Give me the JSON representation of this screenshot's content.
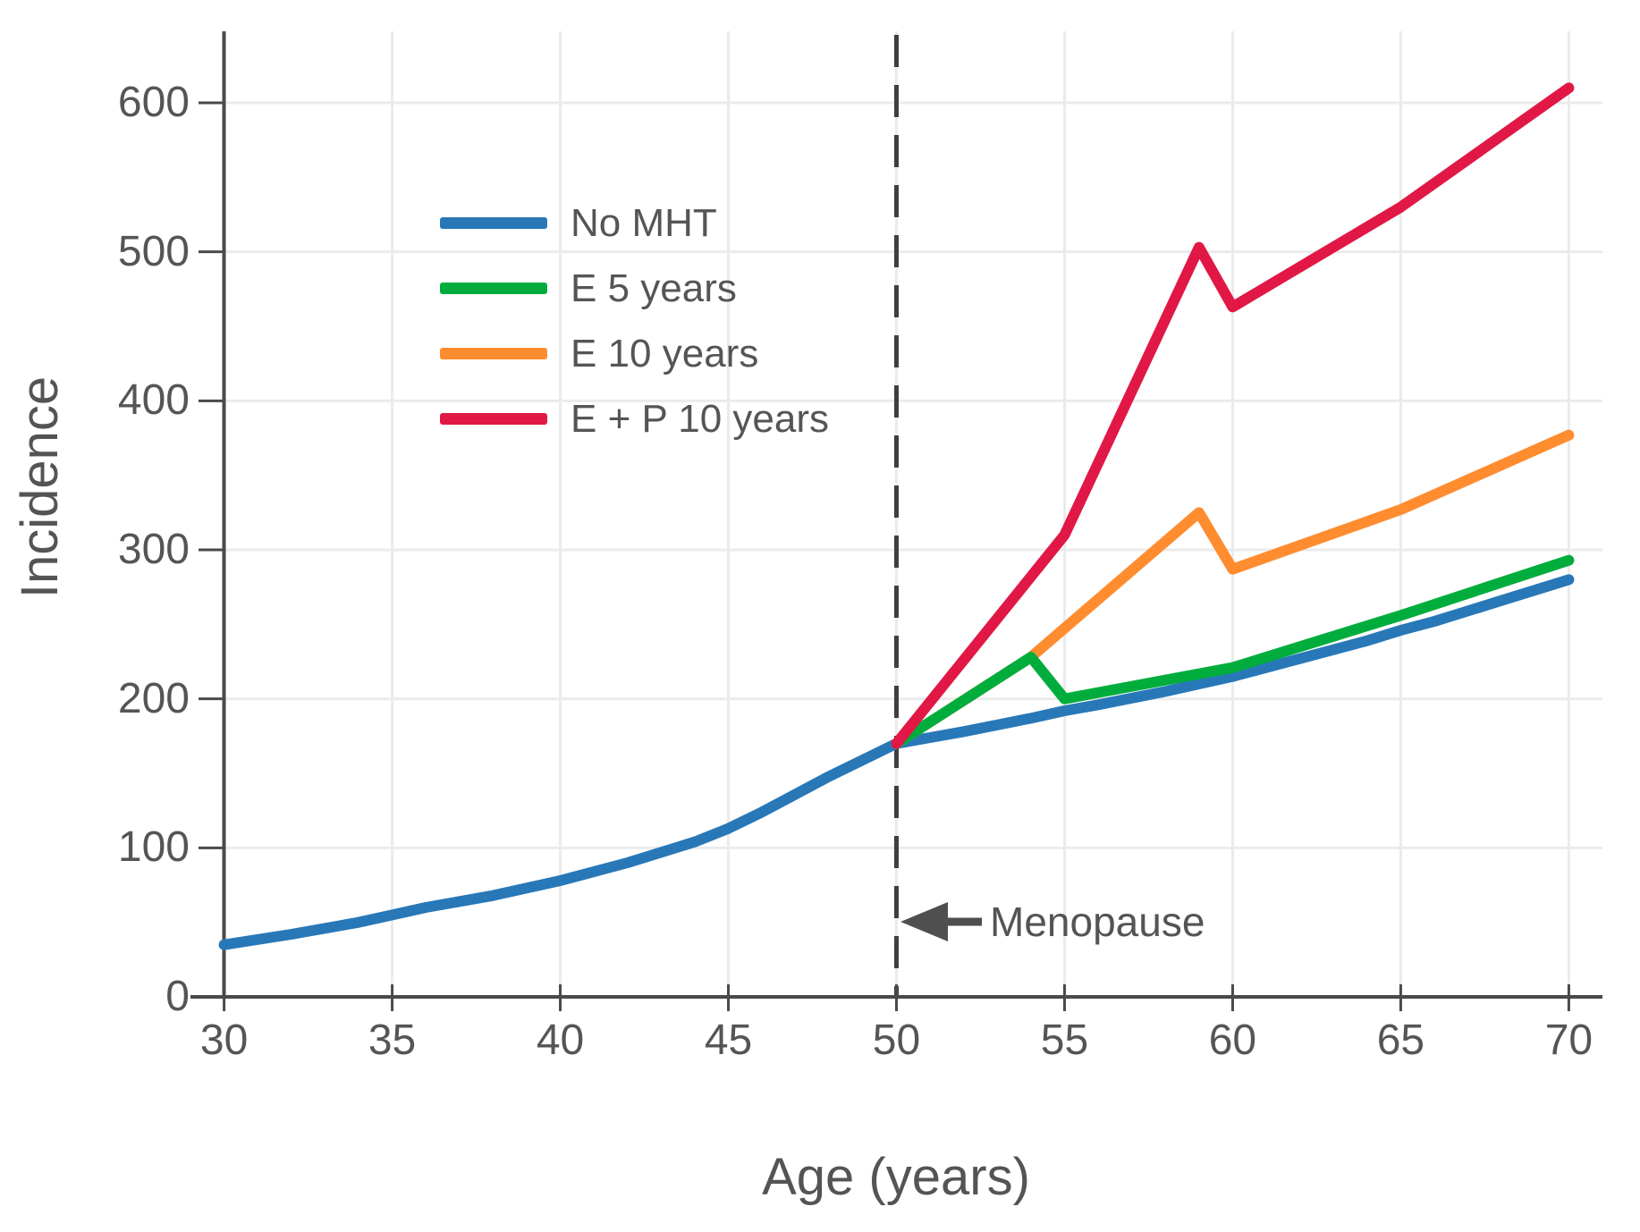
{
  "axes": {
    "x_label": "Age (years)",
    "y_label": "Incidence"
  },
  "annotation": {
    "menopause_label": "Menopause"
  },
  "style_colors": {
    "axis": "#4a4a4a",
    "grid": "#ebebeb",
    "dashed_line": "#3f3f3f",
    "arrow": "#4f4f4f",
    "text": "#555555"
  },
  "chart_data": {
    "type": "line",
    "title": "",
    "xlabel": "Age (years)",
    "ylabel": "Incidence",
    "x_ticks": [
      30,
      35,
      40,
      45,
      50,
      55,
      60,
      65,
      70
    ],
    "y_ticks": [
      0,
      100,
      200,
      300,
      400,
      500,
      600
    ],
    "xlim": [
      29,
      71
    ],
    "ylim": [
      0,
      648
    ],
    "grid": true,
    "legend_position": "upper-left-inside",
    "vline": {
      "x": 50,
      "style": "dashed",
      "label": "Menopause"
    },
    "series": [
      {
        "name": "No MHT",
        "color": "#2878b8",
        "x": [
          30,
          32,
          34,
          35,
          36,
          38,
          40,
          42,
          44,
          45,
          46,
          47,
          48,
          49,
          50,
          51,
          52,
          54,
          55,
          56,
          58,
          60,
          62,
          64,
          65,
          66,
          68,
          70
        ],
        "y": [
          35,
          42,
          50,
          55,
          60,
          68,
          78,
          90,
          104,
          113,
          124,
          136,
          148,
          159,
          170,
          174,
          178,
          187,
          192,
          196,
          205,
          215,
          227,
          239,
          246,
          252,
          266,
          280
        ]
      },
      {
        "name": "E 5 years",
        "color": "#00ad3c",
        "x": [
          50,
          54,
          55,
          60,
          65,
          70
        ],
        "y": [
          170,
          228,
          200,
          221,
          256,
          293
        ]
      },
      {
        "name": "E 10 years",
        "color": "#ff8c2f",
        "x": [
          50,
          54,
          59,
          60,
          65,
          70
        ],
        "y": [
          170,
          228,
          325,
          287,
          327,
          377
        ]
      },
      {
        "name": "E + P 10 years",
        "color": "#e11845",
        "x": [
          50,
          55,
          59,
          60,
          65,
          70
        ],
        "y": [
          170,
          310,
          503,
          463,
          530,
          610
        ]
      }
    ]
  }
}
